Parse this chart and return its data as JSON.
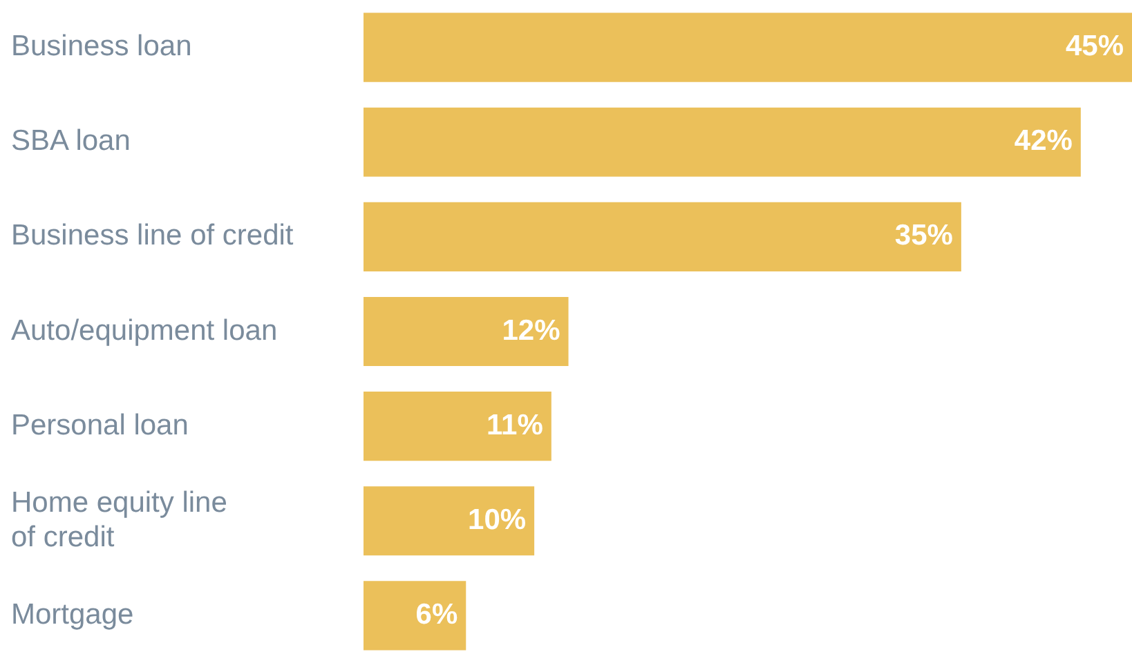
{
  "chart_data": {
    "type": "bar",
    "orientation": "horizontal",
    "categories": [
      "Business loan",
      "SBA loan",
      "Business line of credit",
      "Auto/equipment loan",
      "Personal loan",
      "Home equity line\nof credit",
      "Mortgage"
    ],
    "values": [
      45,
      42,
      35,
      12,
      11,
      10,
      6
    ],
    "value_labels": [
      "45%",
      "42%",
      "35%",
      "12%",
      "11%",
      "10%",
      "6%"
    ],
    "color": "#ebc05a"
  }
}
